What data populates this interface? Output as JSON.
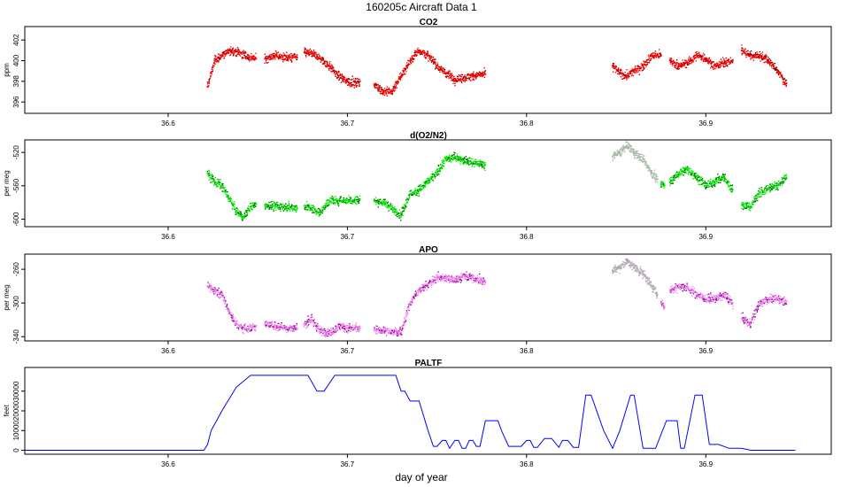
{
  "title": "160205c   Aircraft Data 1",
  "xlabel": "day of year",
  "colors": {
    "co2": "#ff0000",
    "co2_dark": "#8b0000",
    "o2": "#00ee00",
    "o2_dark": "#006400",
    "o2_gray": "#a8b8a8",
    "apo": "#ee82ee",
    "apo_dark": "#8b008b",
    "apo_gray": "#b4a8b4",
    "paltf": "#0000ff"
  },
  "chart_data": [
    {
      "type": "scatter",
      "title": "CO2",
      "ylabel": "ppm",
      "xlim": [
        36.52,
        36.97
      ],
      "ylim": [
        394.9,
        403.3
      ],
      "xticks": [
        "36.6",
        "36.7",
        "36.8",
        "36.9"
      ],
      "yticks": [
        "396",
        "398",
        "400",
        "402"
      ],
      "series": [
        {
          "segments": [
            {
              "x": [
                36.622,
                36.626,
                36.63,
                36.635,
                36.64,
                36.645,
                36.649
              ],
              "y": [
                397.5,
                400,
                400.5,
                401,
                400.8,
                400.3,
                400.2
              ]
            },
            {
              "x": [
                36.654,
                36.66,
                36.666,
                36.672
              ],
              "y": [
                400.2,
                400.5,
                400.3,
                400.3
              ]
            },
            {
              "x": [
                36.676,
                36.68,
                36.685,
                36.69,
                36.695,
                36.7,
                36.705,
                36.707
              ],
              "y": [
                400.8,
                400.7,
                400.2,
                399.5,
                398.5,
                398,
                397.8,
                398
              ]
            },
            {
              "x": [
                36.715,
                36.72,
                36.725,
                36.73,
                36.735,
                36.74,
                36.745,
                36.75,
                36.755,
                36.76,
                36.77,
                36.777
              ],
              "y": [
                397.7,
                397,
                397,
                398.5,
                400,
                401,
                400.5,
                399.5,
                398.8,
                398.2,
                398.5,
                398.7
              ]
            },
            {
              "x": [
                36.848,
                36.852,
                36.856,
                36.86,
                36.865,
                36.87,
                36.875
              ],
              "y": [
                399.5,
                398.8,
                398.5,
                399,
                399.5,
                400.5,
                400.5
              ]
            },
            {
              "x": [
                36.88,
                36.885,
                36.89,
                36.895,
                36.9,
                36.905,
                36.91,
                36.915
              ],
              "y": [
                400,
                399.5,
                399.8,
                400.5,
                400.2,
                399.5,
                399.8,
                400
              ]
            },
            {
              "x": [
                36.92,
                36.925,
                36.93,
                36.935,
                36.94,
                36.945
              ],
              "y": [
                401,
                400.5,
                400.5,
                400,
                399,
                397.8
              ]
            }
          ]
        }
      ]
    },
    {
      "type": "scatter",
      "title": "d(O2/N2)",
      "ylabel": "per meg",
      "xlim": [
        36.52,
        36.97
      ],
      "ylim": [
        -609,
        -505
      ],
      "xticks": [
        "36.6",
        "36.7",
        "36.8",
        "36.9"
      ],
      "yticks": [
        "-600",
        "-560",
        "-520"
      ],
      "series": [
        {
          "segments": [
            {
              "x": [
                36.622,
                36.626,
                36.63,
                36.634,
                36.638,
                36.642,
                36.645,
                36.649
              ],
              "y": [
                -545,
                -555,
                -560,
                -575,
                -590,
                -598,
                -588,
                -582
              ]
            },
            {
              "x": [
                36.654,
                36.66,
                36.666,
                36.672
              ],
              "y": [
                -583,
                -585,
                -585,
                -587
              ]
            },
            {
              "x": [
                36.676,
                36.68,
                36.685,
                36.69,
                36.695,
                36.7,
                36.707
              ],
              "y": [
                -584,
                -588,
                -592,
                -578,
                -578,
                -577,
                -577
              ]
            },
            {
              "x": [
                36.715,
                36.72,
                36.725,
                36.73,
                36.735,
                36.74,
                36.745,
                36.75,
                36.755,
                36.76,
                36.765,
                36.77,
                36.777
              ],
              "y": [
                -578,
                -580,
                -587,
                -596,
                -570,
                -565,
                -555,
                -545,
                -528,
                -525,
                -530,
                -532,
                -535
              ]
            },
            {
              "x": [
                36.875,
                36.877
              ],
              "y": [
                -558,
                -560
              ]
            },
            {
              "x": [
                36.88,
                36.885,
                36.89,
                36.895,
                36.9,
                36.905,
                36.91,
                36.915
              ],
              "y": [
                -556,
                -545,
                -540,
                -550,
                -560,
                -555,
                -550,
                -565
              ]
            },
            {
              "x": [
                36.92,
                36.925,
                36.93,
                36.935,
                36.94,
                36.945
              ],
              "y": [
                -583,
                -585,
                -568,
                -563,
                -560,
                -550
              ]
            }
          ]
        },
        {
          "segments": [
            {
              "x": [
                36.848,
                36.852,
                36.856,
                36.86,
                36.865,
                36.87,
                36.873
              ],
              "y": [
                -525,
                -520,
                -512,
                -520,
                -528,
                -545,
                -552
              ]
            }
          ]
        }
      ]
    },
    {
      "type": "scatter",
      "title": "APO",
      "ylabel": "per meg",
      "xlim": [
        36.52,
        36.97
      ],
      "ylim": [
        -345,
        -242
      ],
      "xticks": [
        "36.6",
        "36.7",
        "36.8",
        "36.9"
      ],
      "yticks": [
        "-340",
        "-300",
        "-260"
      ],
      "series": [
        {
          "segments": [
            {
              "x": [
                36.622,
                36.626,
                36.63,
                36.634,
                36.638,
                36.642,
                36.645,
                36.649
              ],
              "y": [
                -280,
                -285,
                -290,
                -310,
                -325,
                -330,
                -330,
                -327
              ]
            },
            {
              "x": [
                36.654,
                36.66,
                36.666,
                36.672
              ],
              "y": [
                -325,
                -327,
                -330,
                -330
              ]
            },
            {
              "x": [
                36.676,
                36.68,
                36.685,
                36.69,
                36.695,
                36.7,
                36.707
              ],
              "y": [
                -325,
                -320,
                -333,
                -335,
                -328,
                -330,
                -330
              ]
            },
            {
              "x": [
                36.715,
                36.72,
                36.725,
                36.73,
                36.735,
                36.74,
                36.745,
                36.75,
                36.755,
                36.76,
                36.765,
                36.77,
                36.777
              ],
              "y": [
                -332,
                -332,
                -335,
                -335,
                -300,
                -285,
                -278,
                -270,
                -270,
                -272,
                -268,
                -270,
                -275
              ]
            },
            {
              "x": [
                36.875,
                36.877
              ],
              "y": [
                -300,
                -305
              ]
            },
            {
              "x": [
                36.88,
                36.885,
                36.89,
                36.895,
                36.9,
                36.905,
                36.91,
                36.915
              ],
              "y": [
                -285,
                -280,
                -282,
                -290,
                -295,
                -295,
                -290,
                -300
              ]
            },
            {
              "x": [
                36.92,
                36.925,
                36.93,
                36.935,
                36.94,
                36.945
              ],
              "y": [
                -318,
                -325,
                -300,
                -295,
                -295,
                -298
              ]
            }
          ]
        },
        {
          "segments": [
            {
              "x": [
                36.848,
                36.852,
                36.856,
                36.86,
                36.865,
                36.87,
                36.873
              ],
              "y": [
                -262,
                -258,
                -250,
                -258,
                -265,
                -280,
                -290
              ]
            }
          ]
        }
      ]
    },
    {
      "type": "line",
      "title": "PALTF",
      "ylabel": "feet",
      "xlim": [
        36.52,
        36.97
      ],
      "ylim": [
        -2000,
        42000
      ],
      "xticks": [
        "36.6",
        "36.7",
        "36.8",
        "36.9"
      ],
      "yticks": [
        "0",
        "10000",
        "20000",
        "30000"
      ],
      "series": [
        {
          "x": [
            36.52,
            36.543,
            36.62,
            36.622,
            36.624,
            36.63,
            36.638,
            36.646,
            36.65,
            36.66,
            36.67,
            36.678,
            36.683,
            36.687,
            36.693,
            36.7,
            36.71,
            36.715,
            36.72,
            36.727,
            36.73,
            36.732,
            36.735,
            36.74,
            36.745,
            36.748,
            36.75,
            36.753,
            36.755,
            36.757,
            36.76,
            36.762,
            36.764,
            36.766,
            36.768,
            36.77,
            36.772,
            36.774,
            36.777,
            36.779,
            36.784,
            36.786,
            36.79,
            36.797,
            36.8,
            36.802,
            36.804,
            36.806,
            36.81,
            36.814,
            36.818,
            36.82,
            36.823,
            36.826,
            36.829,
            36.833,
            36.836,
            36.843,
            36.848,
            36.852,
            36.858,
            36.86,
            36.865,
            36.872,
            36.878,
            36.884,
            36.886,
            36.888,
            36.894,
            36.898,
            36.902,
            36.907,
            36.913,
            36.92,
            36.925,
            36.932,
            36.938,
            36.941,
            36.944,
            36.946,
            36.948,
            36.95
          ],
          "y": [
            0,
            0,
            0,
            3000,
            10000,
            20000,
            32000,
            38000,
            38000,
            38000,
            38000,
            38000,
            30000,
            30000,
            38000,
            38000,
            38000,
            38000,
            38000,
            38000,
            30000,
            30000,
            25000,
            25000,
            10000,
            2000,
            2000,
            5000,
            5000,
            1000,
            5000,
            5000,
            1000,
            1000,
            5000,
            5000,
            2000,
            2000,
            15000,
            15000,
            15000,
            10000,
            2000,
            2000,
            5000,
            5000,
            1500,
            1500,
            6000,
            6000,
            1500,
            5000,
            5000,
            1500,
            1500,
            28000,
            28000,
            10000,
            1000,
            10000,
            28000,
            28000,
            1000,
            1000,
            15000,
            15000,
            1000,
            1000,
            28000,
            28000,
            3000,
            3000,
            1000,
            1000,
            0,
            0,
            0,
            0,
            0,
            0,
            0,
            0
          ]
        }
      ]
    }
  ]
}
